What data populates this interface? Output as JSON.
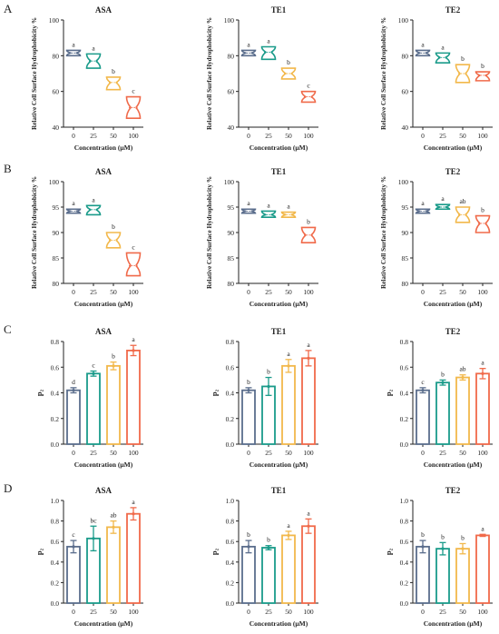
{
  "panel_letters": [
    "A",
    "B",
    "C",
    "D"
  ],
  "colors": {
    "0": "#5a6d8c",
    "25": "#1a9b8a",
    "50": "#f2b84b",
    "100": "#f06a4a",
    "axis": "#222222"
  },
  "chart_data": [
    {
      "row": "A",
      "type": "violin",
      "title": "ASA",
      "xlabel": "Concentration (μM)",
      "ylabel": "Relative Cell Surface Hydrophobicity %",
      "categories": [
        "0",
        "25",
        "50",
        "100"
      ],
      "ylim": [
        40,
        100
      ],
      "yticks": [
        "40",
        "60",
        "80",
        "100"
      ],
      "values": [
        81.5,
        77,
        65,
        51
      ],
      "spread": [
        [
          80,
          83
        ],
        [
          73,
          81
        ],
        [
          61,
          68
        ],
        [
          45,
          57
        ]
      ],
      "letters": [
        "a",
        "a",
        "b",
        "c"
      ]
    },
    {
      "row": "A",
      "type": "violin",
      "title": "TE1",
      "xlabel": "Concentration (μM)",
      "ylabel": "Relative Cell Surface Hydrophobicity %",
      "categories": [
        "0",
        "25",
        "50",
        "100"
      ],
      "ylim": [
        40,
        100
      ],
      "yticks": [
        "40",
        "60",
        "80",
        "100"
      ],
      "values": [
        81.5,
        82,
        70,
        57
      ],
      "spread": [
        [
          80,
          83
        ],
        [
          78,
          85
        ],
        [
          67,
          73
        ],
        [
          54,
          60
        ]
      ],
      "letters": [
        "a",
        "a",
        "b",
        "c"
      ]
    },
    {
      "row": "A",
      "type": "violin",
      "title": "TE2",
      "xlabel": "Concentration (μM)",
      "ylabel": "Relative Cell Surface Hydrophobicity %",
      "categories": [
        "0",
        "25",
        "50",
        "100"
      ],
      "ylim": [
        40,
        100
      ],
      "yticks": [
        "40",
        "60",
        "80",
        "100"
      ],
      "values": [
        81.5,
        79,
        70,
        69
      ],
      "spread": [
        [
          80,
          83
        ],
        [
          76,
          81.5
        ],
        [
          65,
          75
        ],
        [
          66,
          71
        ]
      ],
      "letters": [
        "a",
        "a",
        "b",
        "b"
      ]
    },
    {
      "row": "B",
      "type": "violin",
      "title": "ASA",
      "xlabel": "Concentration (μM)",
      "ylabel": "Relative Cell Surface Hydrophobicity %",
      "categories": [
        "0",
        "25",
        "50",
        "100"
      ],
      "ylim": [
        80,
        100
      ],
      "yticks": [
        "80",
        "85",
        "90",
        "95",
        "100"
      ],
      "values": [
        94.2,
        94.5,
        88.5,
        83.5
      ],
      "spread": [
        [
          93.8,
          94.6
        ],
        [
          93.5,
          95.3
        ],
        [
          87,
          90
        ],
        [
          81.5,
          86
        ]
      ],
      "letters": [
        "a",
        "a",
        "b",
        "c"
      ]
    },
    {
      "row": "B",
      "type": "violin",
      "title": "TE1",
      "xlabel": "Concentration (μM)",
      "ylabel": "Relative Cell Surface Hydrophobicity %",
      "categories": [
        "0",
        "25",
        "50",
        "100"
      ],
      "ylim": [
        80,
        100
      ],
      "yticks": [
        "80",
        "85",
        "90",
        "95",
        "100"
      ],
      "values": [
        94.2,
        93.5,
        93.5,
        89.5
      ],
      "spread": [
        [
          93.8,
          94.6
        ],
        [
          93,
          94.2
        ],
        [
          93,
          94
        ],
        [
          88,
          91
        ]
      ],
      "letters": [
        "a",
        "a",
        "a",
        "b"
      ]
    },
    {
      "row": "B",
      "type": "violin",
      "title": "TE2",
      "xlabel": "Concentration (μM)",
      "ylabel": "Relative Cell Surface Hydrophobicity %",
      "categories": [
        "0",
        "25",
        "50",
        "100"
      ],
      "ylim": [
        80,
        100
      ],
      "yticks": [
        "80",
        "85",
        "90",
        "95",
        "100"
      ],
      "values": [
        94.2,
        95,
        93.5,
        91.8
      ],
      "spread": [
        [
          93.8,
          94.6
        ],
        [
          94.6,
          95.5
        ],
        [
          92,
          95
        ],
        [
          90,
          93.3
        ]
      ],
      "letters": [
        "a",
        "a",
        "ab",
        "b"
      ]
    },
    {
      "row": "C",
      "type": "bar",
      "title": "ASA",
      "xlabel": "Concentration (μM)",
      "ylabel": "p₂",
      "categories": [
        "0",
        "25",
        "50",
        "100"
      ],
      "ylim": [
        0,
        0.8
      ],
      "yticks": [
        "0.0",
        "0.2",
        "0.4",
        "0.6",
        "0.8"
      ],
      "values": [
        0.42,
        0.55,
        0.61,
        0.73
      ],
      "errors": [
        0.02,
        0.02,
        0.03,
        0.04
      ],
      "letters": [
        "d",
        "c",
        "b",
        "a"
      ]
    },
    {
      "row": "C",
      "type": "bar",
      "title": "TE1",
      "xlabel": "Concentration (μM)",
      "ylabel": "p₂",
      "categories": [
        "0",
        "25",
        "50",
        "100"
      ],
      "ylim": [
        0,
        0.8
      ],
      "yticks": [
        "0.0",
        "0.2",
        "0.4",
        "0.6",
        "0.8"
      ],
      "values": [
        0.42,
        0.45,
        0.61,
        0.67
      ],
      "errors": [
        0.02,
        0.07,
        0.05,
        0.06
      ],
      "letters": [
        "b",
        "b",
        "a",
        "a"
      ]
    },
    {
      "row": "C",
      "type": "bar",
      "title": "TE2",
      "xlabel": "Concentration (μM)",
      "ylabel": "p₂",
      "categories": [
        "0",
        "25",
        "50",
        "100"
      ],
      "ylim": [
        0,
        0.8
      ],
      "yticks": [
        "0.0",
        "0.2",
        "0.4",
        "0.6",
        "0.8"
      ],
      "values": [
        0.42,
        0.48,
        0.52,
        0.55
      ],
      "errors": [
        0.02,
        0.02,
        0.02,
        0.04
      ],
      "letters": [
        "c",
        "b",
        "ab",
        "a"
      ]
    },
    {
      "row": "D",
      "type": "bar",
      "title": "ASA",
      "xlabel": "Concentration (μM)",
      "ylabel": "p₂",
      "categories": [
        "0",
        "25",
        "50",
        "100"
      ],
      "ylim": [
        0,
        1.0
      ],
      "yticks": [
        "0.0",
        "0.2",
        "0.4",
        "0.6",
        "0.8",
        "1.0"
      ],
      "values": [
        0.55,
        0.63,
        0.74,
        0.87
      ],
      "errors": [
        0.06,
        0.12,
        0.06,
        0.06
      ],
      "letters": [
        "c",
        "bc",
        "ab",
        "a"
      ]
    },
    {
      "row": "D",
      "type": "bar",
      "title": "TE1",
      "xlabel": "Concentration (μM)",
      "ylabel": "p₂",
      "categories": [
        "0",
        "25",
        "50",
        "100"
      ],
      "ylim": [
        0,
        1.0
      ],
      "yticks": [
        "0.0",
        "0.2",
        "0.4",
        "0.6",
        "0.8",
        "1.0"
      ],
      "values": [
        0.55,
        0.54,
        0.66,
        0.75
      ],
      "errors": [
        0.06,
        0.02,
        0.04,
        0.07
      ],
      "letters": [
        "b",
        "b",
        "a",
        "a"
      ]
    },
    {
      "row": "D",
      "type": "bar",
      "title": "TE2",
      "xlabel": "Concentration (μM)",
      "ylabel": "p₂",
      "categories": [
        "0",
        "25",
        "50",
        "100"
      ],
      "ylim": [
        0,
        1.0
      ],
      "yticks": [
        "0.0",
        "0.2",
        "0.4",
        "0.6",
        "0.8",
        "1.0"
      ],
      "values": [
        0.55,
        0.53,
        0.53,
        0.66
      ],
      "errors": [
        0.06,
        0.06,
        0.05,
        0.01
      ],
      "letters": [
        "b",
        "b",
        "b",
        "a"
      ]
    }
  ]
}
